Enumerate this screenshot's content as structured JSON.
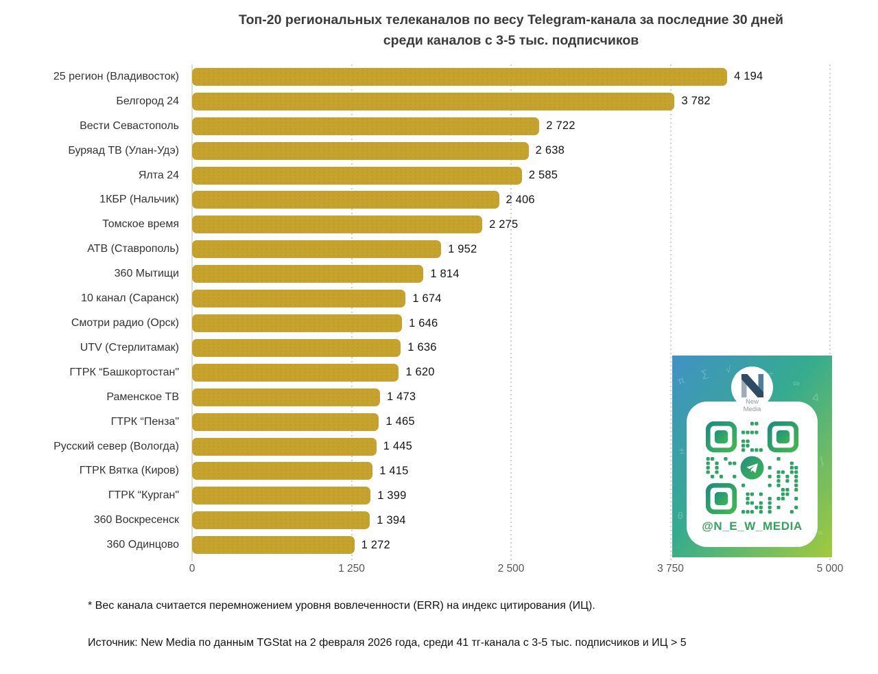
{
  "chart_data": {
    "type": "bar",
    "orientation": "horizontal",
    "title": "Топ-20 региональных телеканалов по весу Telegram-канала за последние 30 дней среди каналов с 3-5 тыс. подписчиков",
    "title_lines": [
      "Топ-20 региональных телеканалов по весу Telegram-канала за последние 30 дней",
      "среди каналов с 3-5 тыс. подписчиков"
    ],
    "categories": [
      "25 регион (Владивосток)",
      "Белгород 24",
      "Вести Севастополь",
      "Буряад ТВ (Улан-Удэ)",
      "Ялта 24",
      "1КБР (Нальчик)",
      "Томское время",
      "АТВ (Ставрополь)",
      "360 Мытищи",
      "10 канал (Саранск)",
      "Смотри радио (Орск)",
      "UTV (Стерлитамак)",
      "ГТРК “Башкортостан\"",
      "Раменское ТВ",
      "ГТРК “Пенза\"",
      "Русский север (Вологда)",
      "ГТРК Вятка (Киров)",
      "ГТРК “Курган\"",
      "360 Воскресенск",
      "360 Одинцово"
    ],
    "values": [
      4194,
      3782,
      2722,
      2638,
      2585,
      2406,
      2275,
      1952,
      1814,
      1674,
      1646,
      1636,
      1620,
      1473,
      1465,
      1445,
      1415,
      1399,
      1394,
      1272
    ],
    "value_labels": [
      "4 194",
      "3 782",
      "2 722",
      "2 638",
      "2 585",
      "2 406",
      "2 275",
      "1 952",
      "1 814",
      "1 674",
      "1 646",
      "1 636",
      "1 620",
      "1 473",
      "1 465",
      "1 445",
      "1 415",
      "1 399",
      "1 394",
      "1 272"
    ],
    "xlabel": "",
    "ylabel": "",
    "xlim": [
      0,
      5000
    ],
    "tick_values": [
      0,
      1250,
      2500,
      3750,
      5000
    ],
    "tick_labels": [
      "0",
      "1 250",
      "2 500",
      "3 750",
      "5 000"
    ],
    "grid": "vertical-dotted",
    "legend": null,
    "bar_color": "#c5a32d"
  },
  "footnotes": {
    "definition": "* Вес канала считается перемножением уровня вовлеченности (ERR) на индекс цитирования (ИЦ).",
    "source": "Источник: New Media по данным TGStat на 2 февраля 2026 года, среди 41 тг-канала с 3-5 тыс. подписчиков и ИЦ > 5"
  },
  "qr_card": {
    "brand": {
      "line1": "New",
      "line2": "Media"
    },
    "handle": "@N_E_W_MEDIA",
    "colors": {
      "panel_gradient": [
        "#4191c5",
        "#35ab8f",
        "#a2ca3d"
      ],
      "qr_dark": "#1d8e80",
      "qr_light": "#3eb84d",
      "handle_green": "#33a25c",
      "logo_dark": "#2f4a63",
      "logo_light": "#9fadb9",
      "logo_mid": "#4d7f9d"
    },
    "doodles": [
      "π",
      "∑",
      "√",
      "÷",
      "∞",
      "Δ",
      "∫",
      "≈",
      "±",
      "θ",
      "²",
      "λ"
    ]
  }
}
